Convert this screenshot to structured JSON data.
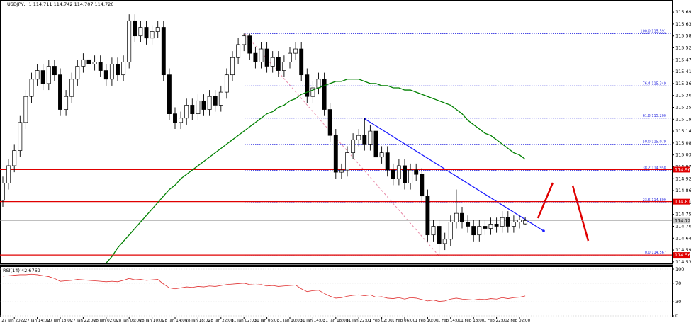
{
  "chart_data": [
    {
      "type": "candlestick",
      "title": "USDJPY,H1  114.711 114.742 114.707 114.726",
      "categories": [
        null,
        null,
        "27 Jan 2022",
        null,
        null,
        null,
        "27 Jan 14:00",
        null,
        null,
        null,
        "27 Jan 18:00",
        null,
        null,
        null,
        "27 Jan 22:00",
        null,
        null,
        null,
        "28 Jan 02:00",
        null,
        null,
        null,
        "28 Jan 06:00",
        null,
        null,
        null,
        "28 Jan 10:00",
        null,
        null,
        null,
        "28 Jan 14:00",
        null,
        null,
        null,
        "28 Jan 18:00",
        null,
        null,
        null,
        "28 Jan 22:00",
        null,
        null,
        null,
        "31 Jan 02:00",
        null,
        null,
        null,
        "31 Jan 06:00",
        null,
        null,
        null,
        "31 Jan 10:00",
        null,
        null,
        null,
        "31 Jan 14:00",
        null,
        null,
        null,
        "31 Jan 18:00",
        null,
        null,
        null,
        "31 Jan 22:00",
        null,
        null,
        null,
        "1 Feb 02:00",
        null,
        null,
        null,
        "1 Feb 06:00",
        null,
        null,
        null,
        "1 Feb 10:00",
        null,
        null,
        null,
        "1 Feb 14:00",
        null,
        null,
        null,
        "1 Feb 18:00",
        null,
        null,
        null,
        "1 Feb 22:00",
        null,
        null,
        null,
        "2 Feb 02:00",
        null
      ],
      "open": [
        114.82,
        114.9,
        114.98,
        115.05,
        115.18,
        115.3,
        115.38,
        115.42,
        115.36,
        115.44,
        115.4,
        115.24,
        115.3,
        115.38,
        115.44,
        115.47,
        115.45,
        115.46,
        115.42,
        115.38,
        115.45,
        115.4,
        115.46,
        115.65,
        115.58,
        115.62,
        115.57,
        115.6,
        115.62,
        115.4,
        115.22,
        115.18,
        115.2,
        115.26,
        115.22,
        115.28,
        115.24,
        115.3,
        115.26,
        115.32,
        115.4,
        115.48,
        115.54,
        115.58,
        115.5,
        115.46,
        115.52,
        115.44,
        115.48,
        115.42,
        115.46,
        115.5,
        115.52,
        115.4,
        115.3,
        115.34,
        115.38,
        115.24,
        115.12,
        114.95,
        114.96,
        115.04,
        115.1,
        115.12,
        115.08,
        115.14,
        115.02,
        115.04,
        114.96,
        114.92,
        114.98,
        114.9,
        114.96,
        114.94,
        114.84,
        114.66,
        114.7,
        114.62,
        114.64,
        114.72,
        114.76,
        114.72,
        114.7,
        114.66,
        114.7,
        114.69,
        114.71,
        114.7,
        114.74,
        114.7,
        114.72,
        114.711
      ],
      "high": [
        114.93,
        115.01,
        115.08,
        115.21,
        115.33,
        115.41,
        115.45,
        115.45,
        115.47,
        115.47,
        115.43,
        115.33,
        115.41,
        115.47,
        115.5,
        115.5,
        115.49,
        115.49,
        115.45,
        115.48,
        115.48,
        115.49,
        115.68,
        115.68,
        115.65,
        115.65,
        115.63,
        115.65,
        115.65,
        115.43,
        115.25,
        115.23,
        115.29,
        115.29,
        115.31,
        115.31,
        115.33,
        115.33,
        115.35,
        115.43,
        115.51,
        115.57,
        115.591,
        115.59,
        115.53,
        115.55,
        115.55,
        115.51,
        115.51,
        115.49,
        115.53,
        115.55,
        115.55,
        115.43,
        115.37,
        115.41,
        115.41,
        115.27,
        115.15,
        114.99,
        115.07,
        115.13,
        115.15,
        115.2,
        115.17,
        115.17,
        115.07,
        115.07,
        114.99,
        115.01,
        115.01,
        114.99,
        114.99,
        114.97,
        114.87,
        114.73,
        114.73,
        114.67,
        114.75,
        114.87,
        114.79,
        114.75,
        114.73,
        114.73,
        114.73,
        114.74,
        114.74,
        114.77,
        114.77,
        114.75,
        114.75,
        114.742
      ],
      "low": [
        114.79,
        114.87,
        114.95,
        115.02,
        115.15,
        115.27,
        115.35,
        115.33,
        115.33,
        115.37,
        115.21,
        115.21,
        115.27,
        115.35,
        115.41,
        115.42,
        115.42,
        115.39,
        115.35,
        115.35,
        115.37,
        115.37,
        115.43,
        115.55,
        115.55,
        115.54,
        115.54,
        115.57,
        115.37,
        115.19,
        115.15,
        115.15,
        115.17,
        115.19,
        115.19,
        115.21,
        115.21,
        115.23,
        115.23,
        115.29,
        115.37,
        115.45,
        115.51,
        115.47,
        115.43,
        115.43,
        115.41,
        115.41,
        115.39,
        115.39,
        115.43,
        115.47,
        115.37,
        115.27,
        115.27,
        115.31,
        115.21,
        115.09,
        114.92,
        114.92,
        114.93,
        115.01,
        115.07,
        115.05,
        115.05,
        114.99,
        114.99,
        114.93,
        114.89,
        114.89,
        114.87,
        114.87,
        114.91,
        114.81,
        114.63,
        114.63,
        114.567,
        114.59,
        114.61,
        114.69,
        114.69,
        114.67,
        114.63,
        114.63,
        114.66,
        114.66,
        114.67,
        114.67,
        114.67,
        114.67,
        114.69,
        114.707
      ],
      "close": [
        114.9,
        114.98,
        115.05,
        115.18,
        115.3,
        115.38,
        115.42,
        115.36,
        115.44,
        115.4,
        115.24,
        115.3,
        115.38,
        115.44,
        115.47,
        115.45,
        115.46,
        115.42,
        115.38,
        115.45,
        115.4,
        115.46,
        115.65,
        115.58,
        115.62,
        115.57,
        115.6,
        115.62,
        115.4,
        115.22,
        115.18,
        115.2,
        115.26,
        115.22,
        115.28,
        115.24,
        115.3,
        115.26,
        115.32,
        115.4,
        115.48,
        115.54,
        115.58,
        115.5,
        115.46,
        115.52,
        115.44,
        115.48,
        115.42,
        115.46,
        115.5,
        115.52,
        115.4,
        115.3,
        115.34,
        115.38,
        115.24,
        115.12,
        114.95,
        114.96,
        115.04,
        115.1,
        115.12,
        115.08,
        115.14,
        115.02,
        115.04,
        114.96,
        114.92,
        114.98,
        114.9,
        114.96,
        114.94,
        114.84,
        114.66,
        114.7,
        114.62,
        114.64,
        114.72,
        114.76,
        114.72,
        114.7,
        114.66,
        114.7,
        114.69,
        114.71,
        114.7,
        114.74,
        114.7,
        114.72,
        114.73,
        114.726
      ],
      "ma": {
        "color": "#008000",
        "values": [
          null,
          null,
          null,
          null,
          null,
          null,
          null,
          null,
          null,
          null,
          null,
          null,
          null,
          null,
          null,
          null,
          null,
          null,
          114.53,
          114.56,
          114.6,
          114.63,
          114.66,
          114.69,
          114.72,
          114.75,
          114.78,
          114.81,
          114.84,
          114.87,
          114.89,
          114.92,
          114.94,
          114.96,
          114.98,
          115.0,
          115.02,
          115.04,
          115.06,
          115.08,
          115.1,
          115.12,
          115.14,
          115.16,
          115.18,
          115.2,
          115.22,
          115.23,
          115.25,
          115.26,
          115.28,
          115.29,
          115.31,
          115.32,
          115.33,
          115.34,
          115.35,
          115.36,
          115.37,
          115.37,
          115.38,
          115.38,
          115.38,
          115.37,
          115.36,
          115.36,
          115.35,
          115.35,
          115.34,
          115.34,
          115.33,
          115.33,
          115.32,
          115.31,
          115.3,
          115.29,
          115.28,
          115.27,
          115.26,
          115.24,
          115.22,
          115.19,
          115.17,
          115.15,
          115.13,
          115.12,
          115.1,
          115.08,
          115.06,
          115.04,
          115.03,
          115.01
        ]
      },
      "ylim": [
        114.528,
        115.746
      ],
      "yticks": [
        {
          "value": 115.69,
          "label": "115.690"
        },
        115.635,
        {
          "value": 115.58,
          "label": "115.580"
        },
        115.525,
        {
          "value": 115.47,
          "label": "115.470"
        },
        115.415,
        {
          "value": 115.36,
          "label": "115.360"
        },
        115.305,
        {
          "value": 115.25,
          "label": "115.250"
        },
        115.195,
        {
          "value": 115.14,
          "label": "115.140"
        },
        115.085,
        {
          "value": 115.03,
          "label": "115.030"
        },
        114.975,
        {
          "value": 114.92,
          "label": "114.920"
        },
        114.865,
        {
          "value": 114.81,
          "label": "114.810"
        },
        114.755,
        {
          "value": 114.7,
          "label": "114.700"
        },
        114.645,
        {
          "value": 114.59,
          "label": "114.590"
        },
        114.535
      ],
      "fib_levels": [
        {
          "value": 115.591,
          "label": "100.0 115.591"
        },
        {
          "value": 115.349,
          "label": "76.4 115.349"
        },
        {
          "value": 115.2,
          "label": "61.8 115.200"
        },
        {
          "value": 115.079,
          "label": "50.0 115.079"
        },
        {
          "value": 114.958,
          "label": "38.2 114.958"
        },
        {
          "value": 114.809,
          "label": "23.6 114.809"
        },
        {
          "value": 114.567,
          "label": "0.0 114.567"
        }
      ],
      "levels": [
        {
          "value": 114.962,
          "label": "114.962"
        },
        {
          "value": 114.814,
          "label": "114.814"
        },
        {
          "value": 114.567,
          "label": "114.567"
        }
      ],
      "level_color": "#e00000",
      "fib_color": "#3030e0",
      "current": {
        "value": 114.726,
        "label": "114.726"
      }
    },
    {
      "type": "line",
      "title": "RSI(14) 42.6769",
      "color": "#e03030",
      "values": [
        85,
        86,
        87,
        88,
        88,
        89,
        88,
        86,
        84,
        80,
        74,
        75,
        76,
        78,
        77,
        76,
        75,
        74,
        73,
        74,
        73,
        76,
        80,
        77,
        78,
        76,
        77,
        78,
        68,
        60,
        58,
        60,
        62,
        61,
        63,
        62,
        64,
        63,
        65,
        67,
        68,
        69,
        70,
        67,
        66,
        67,
        64,
        65,
        63,
        64,
        65,
        66,
        58,
        52,
        54,
        55,
        48,
        42,
        38,
        39,
        42,
        44,
        45,
        43,
        45,
        40,
        41,
        38,
        37,
        39,
        36,
        39,
        38,
        35,
        32,
        34,
        31,
        32,
        36,
        38,
        36,
        35,
        34,
        36,
        35,
        37,
        36,
        39,
        37,
        39,
        40,
        42.68
      ],
      "ylim": [
        0,
        100
      ],
      "yticks": [
        0,
        30,
        70,
        100
      ]
    }
  ]
}
